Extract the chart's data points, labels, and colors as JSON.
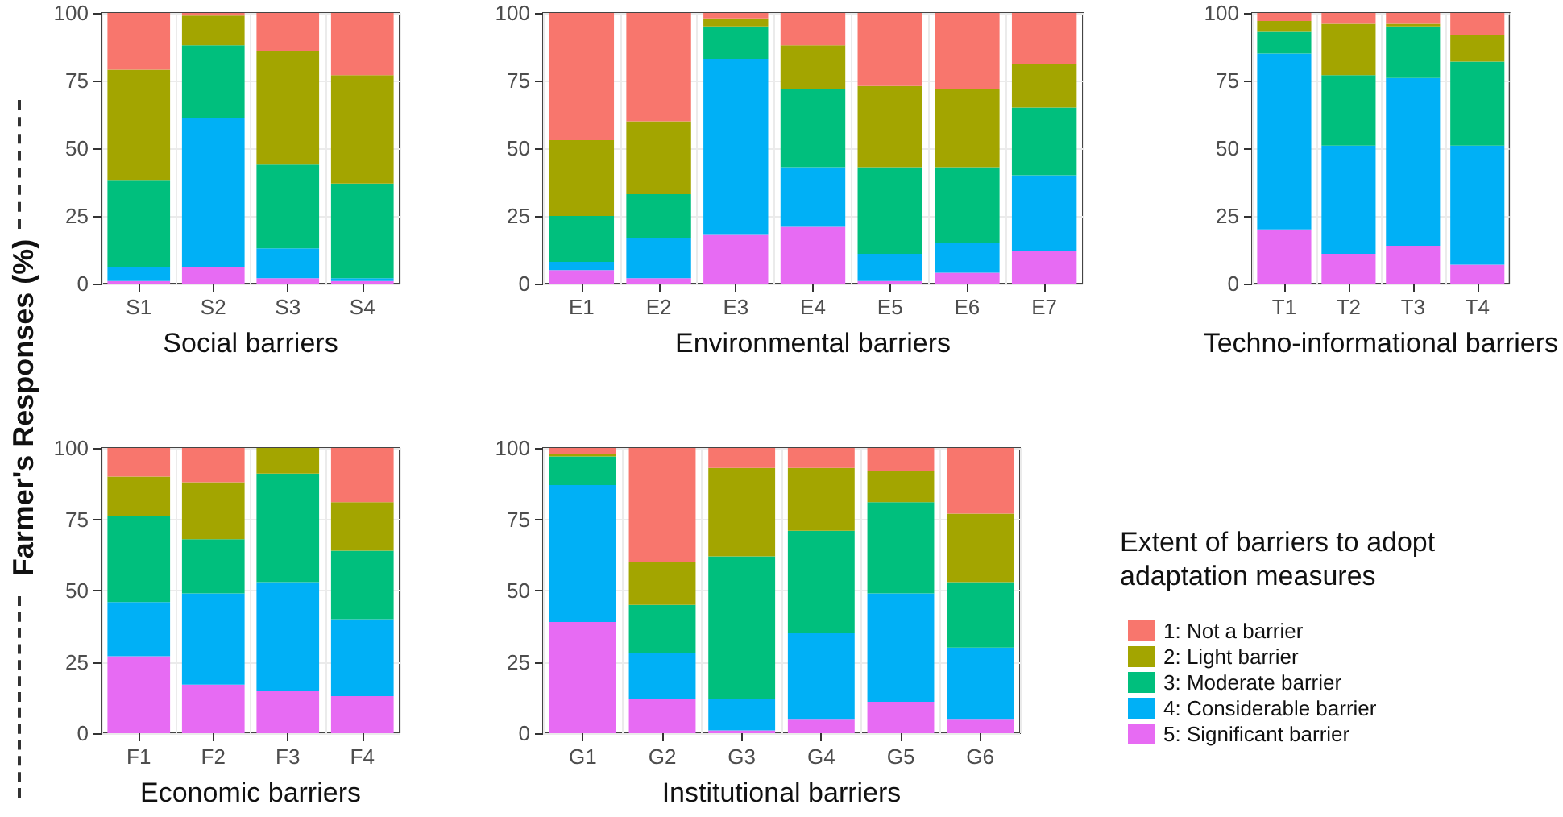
{
  "chart_data": [
    {
      "type": "bar",
      "stacked": true,
      "xlabel": "Social barriers",
      "ylabel": "Farmer's Responses (%)",
      "categories": [
        "S1",
        "S2",
        "S3",
        "S4"
      ],
      "ylim": [
        0,
        100
      ],
      "yticks": [
        0,
        25,
        50,
        75,
        100
      ],
      "grid": true,
      "legend": false,
      "series": [
        {
          "color": "#e76bf3",
          "values": [
            1,
            6,
            2,
            1
          ]
        },
        {
          "color": "#00b0f6",
          "values": [
            5,
            55,
            11,
            1
          ]
        },
        {
          "color": "#00bf7d",
          "values": [
            32,
            27,
            31,
            35
          ]
        },
        {
          "color": "#a3a500",
          "values": [
            41,
            11,
            42,
            40
          ]
        },
        {
          "color": "#f8766d",
          "values": [
            21,
            1,
            14,
            23
          ]
        }
      ]
    },
    {
      "type": "bar",
      "stacked": true,
      "xlabel": "Environmental barriers",
      "categories": [
        "E1",
        "E2",
        "E3",
        "E4",
        "E5",
        "E6",
        "E7"
      ],
      "ylim": [
        0,
        100
      ],
      "yticks": [
        0,
        25,
        50,
        75,
        100
      ],
      "grid": true,
      "legend": false,
      "series": [
        {
          "color": "#e76bf3",
          "values": [
            5,
            2,
            18,
            21,
            1,
            4,
            12
          ]
        },
        {
          "color": "#00b0f6",
          "values": [
            3,
            15,
            65,
            22,
            10,
            11,
            28
          ]
        },
        {
          "color": "#00bf7d",
          "values": [
            17,
            16,
            12,
            29,
            32,
            28,
            25
          ]
        },
        {
          "color": "#a3a500",
          "values": [
            28,
            27,
            3,
            16,
            30,
            29,
            16
          ]
        },
        {
          "color": "#f8766d",
          "values": [
            47,
            40,
            2,
            12,
            27,
            28,
            19
          ]
        }
      ]
    },
    {
      "type": "bar",
      "stacked": true,
      "xlabel": "Techno-informational barriers",
      "categories": [
        "T1",
        "T2",
        "T3",
        "T4"
      ],
      "ylim": [
        0,
        100
      ],
      "yticks": [
        0,
        25,
        50,
        75,
        100
      ],
      "grid": true,
      "legend": false,
      "series": [
        {
          "color": "#e76bf3",
          "values": [
            20,
            11,
            14,
            7
          ]
        },
        {
          "color": "#00b0f6",
          "values": [
            65,
            40,
            62,
            44
          ]
        },
        {
          "color": "#00bf7d",
          "values": [
            8,
            26,
            19,
            31
          ]
        },
        {
          "color": "#a3a500",
          "values": [
            4,
            19,
            1,
            10
          ]
        },
        {
          "color": "#f8766d",
          "values": [
            3,
            4,
            4,
            8
          ]
        }
      ]
    },
    {
      "type": "bar",
      "stacked": true,
      "xlabel": "Economic barriers",
      "categories": [
        "F1",
        "F2",
        "F3",
        "F4"
      ],
      "ylim": [
        0,
        100
      ],
      "yticks": [
        0,
        25,
        50,
        75,
        100
      ],
      "grid": true,
      "legend": false,
      "series": [
        {
          "color": "#e76bf3",
          "values": [
            27,
            17,
            15,
            13
          ]
        },
        {
          "color": "#00b0f6",
          "values": [
            19,
            32,
            38,
            27
          ]
        },
        {
          "color": "#00bf7d",
          "values": [
            30,
            19,
            38,
            24
          ]
        },
        {
          "color": "#a3a500",
          "values": [
            14,
            20,
            9,
            17
          ]
        },
        {
          "color": "#f8766d",
          "values": [
            10,
            12,
            0,
            19
          ]
        }
      ]
    },
    {
      "type": "bar",
      "stacked": true,
      "xlabel": "Institutional barriers",
      "legend_title": "Extent of barriers to adopt adaptation measures",
      "categories": [
        "G1",
        "G2",
        "G3",
        "G4",
        "G5",
        "G6"
      ],
      "ylim": [
        0,
        100
      ],
      "yticks": [
        0,
        25,
        50,
        75,
        100
      ],
      "grid": true,
      "legend": "right",
      "series": [
        {
          "name": "5: Significant barrier",
          "color": "#e76bf3",
          "values": [
            39,
            12,
            1,
            5,
            11,
            5
          ]
        },
        {
          "name": "4: Considerable barrier",
          "color": "#00b0f6",
          "values": [
            48,
            16,
            11,
            30,
            38,
            25
          ]
        },
        {
          "name": "3: Moderate barrier",
          "color": "#00bf7d",
          "values": [
            10,
            17,
            50,
            36,
            32,
            23
          ]
        },
        {
          "name": "2: Light barrier",
          "color": "#a3a500",
          "values": [
            1,
            15,
            31,
            22,
            11,
            24
          ]
        },
        {
          "name": "1: Not a barrier",
          "color": "#f8766d",
          "values": [
            2,
            40,
            7,
            7,
            8,
            23
          ]
        }
      ]
    }
  ]
}
